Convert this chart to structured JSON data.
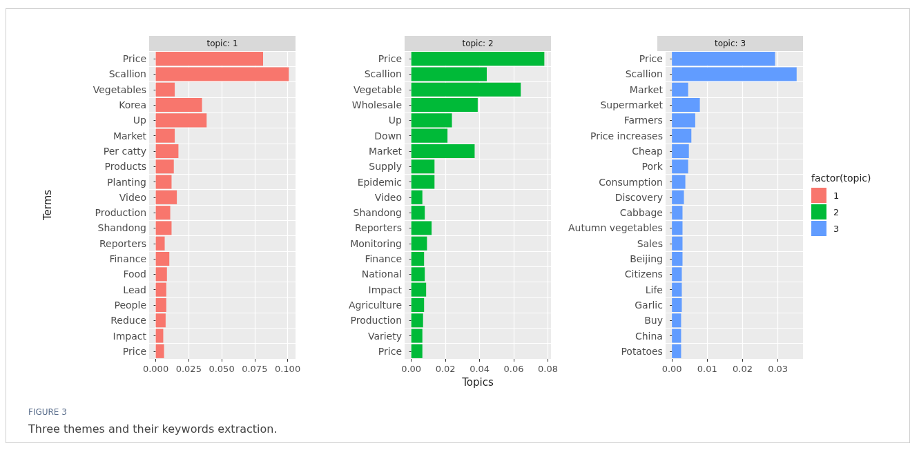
{
  "chart_data": [
    {
      "type": "bar",
      "orientation": "horizontal",
      "title": "topic: 1",
      "ylabel": "Terms",
      "categories": [
        "Price",
        "Scallion",
        "Vegetables",
        "Korea",
        "Up",
        "Market",
        "Per catty",
        "Products",
        "Planting",
        "Video",
        "Production",
        "Shandong",
        "Reporters",
        "Finance",
        "Food",
        "Lead",
        "People",
        "Reduce",
        "Impact",
        "Price"
      ],
      "series": [
        {
          "name": "1",
          "color": "#f8766d",
          "values": [
            0.0814,
            0.1009,
            0.0144,
            0.0351,
            0.0386,
            0.0144,
            0.0172,
            0.0137,
            0.012,
            0.016,
            0.011,
            0.012,
            0.0068,
            0.0103,
            0.0085,
            0.008,
            0.008,
            0.0075,
            0.0057,
            0.0063
          ]
        }
      ],
      "xlim": [
        -0.005,
        0.106
      ],
      "xticks": [
        {
          "value": 0,
          "label": "0.000"
        },
        {
          "value": 0.025,
          "label": "0.025"
        },
        {
          "value": 0.05,
          "label": "0.050"
        },
        {
          "value": 0.075,
          "label": "0.075"
        },
        {
          "value": 0.1,
          "label": "0.100"
        }
      ],
      "grid": true,
      "annotations": [
        "FIGURE 3",
        "Three themes and their keywords extraction."
      ]
    },
    {
      "type": "bar",
      "orientation": "horizontal",
      "title": "topic: 2",
      "xlabel": "Topics",
      "categories": [
        "Price",
        "Scallion",
        "Vegetable",
        "Wholesale",
        "Up",
        "Down",
        "Market",
        "Supply",
        "Epidemic",
        "Video",
        "Shandong",
        "Reporters",
        "Monitoring",
        "Finance",
        "National",
        "Impact",
        "Agriculture",
        "Production",
        "Variety",
        "Price"
      ],
      "series": [
        {
          "name": "2",
          "color": "#00ba38",
          "values": [
            0.0779,
            0.0442,
            0.0641,
            0.0389,
            0.0238,
            0.0212,
            0.0371,
            0.0136,
            0.0136,
            0.0065,
            0.0079,
            0.0119,
            0.0092,
            0.0075,
            0.0079,
            0.0087,
            0.0075,
            0.0069,
            0.0065,
            0.0065
          ]
        }
      ],
      "xlim": [
        -0.0039,
        0.0818
      ],
      "xticks": [
        {
          "value": 0,
          "label": "0.00"
        },
        {
          "value": 0.02,
          "label": "0.02"
        },
        {
          "value": 0.04,
          "label": "0.04"
        },
        {
          "value": 0.06,
          "label": "0.06"
        },
        {
          "value": 0.08,
          "label": "0.08"
        }
      ],
      "grid": true
    },
    {
      "type": "bar",
      "orientation": "horizontal",
      "title": "topic: 3",
      "categories": [
        "Price",
        "Scallion",
        "Market",
        "Supermarket",
        "Farmers",
        "Price increases",
        "Cheap",
        "Pork",
        "Consumption",
        "Discovery",
        "Cabbage",
        "Autumn vegetables",
        "Sales",
        "Beijing",
        "Citizens",
        "Life",
        "Garlic",
        "Buy",
        "China",
        "Potatoes"
      ],
      "series": [
        {
          "name": "3",
          "color": "#619cff",
          "values": [
            0.0292,
            0.0353,
            0.0046,
            0.0079,
            0.0066,
            0.0055,
            0.0048,
            0.0046,
            0.0038,
            0.0034,
            0.003,
            0.003,
            0.003,
            0.003,
            0.0028,
            0.0028,
            0.0028,
            0.0026,
            0.0026,
            0.0026
          ]
        }
      ],
      "xlim": [
        -0.0018,
        0.0371
      ],
      "xticks": [
        {
          "value": 0,
          "label": "0.00"
        },
        {
          "value": 0.01,
          "label": "0.01"
        },
        {
          "value": 0.02,
          "label": "0.02"
        },
        {
          "value": 0.03,
          "label": "0.03"
        }
      ],
      "grid": true,
      "legend": "right",
      "legend_title": "factor(topic)"
    }
  ]
}
